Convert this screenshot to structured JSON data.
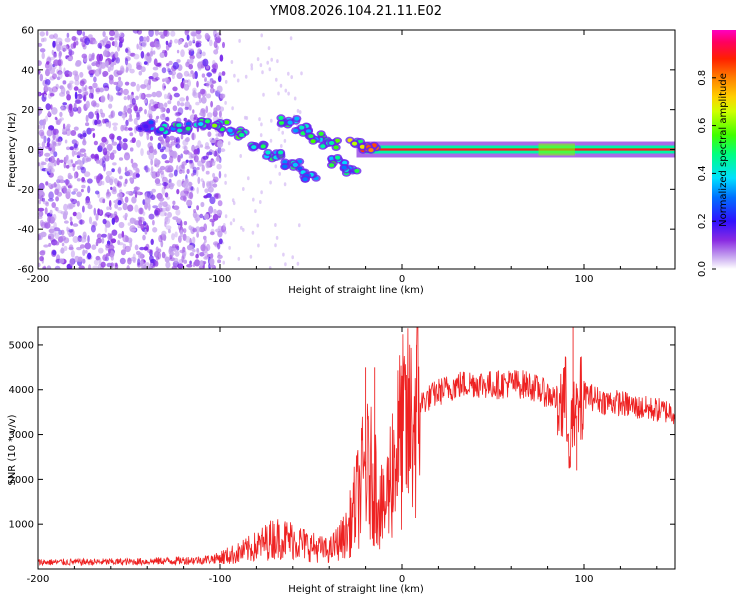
{
  "title": "YM08.2026.104.21.11.E02",
  "chart_data": [
    {
      "type": "heatmap",
      "name": "spectrogram",
      "xlabel": "Height of straight line (km)",
      "ylabel": "Frequency (Hz)",
      "xlim": [
        -200,
        150
      ],
      "ylim": [
        -60,
        60
      ],
      "xticks": [
        -200,
        -100,
        0,
        100
      ],
      "yticks": [
        -60,
        -40,
        -20,
        0,
        20,
        40,
        60
      ],
      "xtick_labels": [
        "-200",
        "-100",
        "0",
        "100"
      ],
      "ytick_labels": [
        "-60",
        "-40",
        "-20",
        "0",
        "20",
        "40",
        "60"
      ],
      "colorbar": {
        "label": "Normalized spectral amplitude",
        "range": [
          0,
          1
        ],
        "ticks": [
          0.0,
          0.2,
          0.4,
          0.6,
          0.8
        ],
        "tick_labels": [
          "0.0",
          "0.2",
          "0.4",
          "0.6",
          "0.8"
        ]
      },
      "features": {
        "noise_region_x": [
          -200,
          -98
        ],
        "sparse_region_x": [
          -98,
          -55
        ],
        "track_points": [
          {
            "x": -140,
            "f": 12,
            "a": 0.25
          },
          {
            "x": -130,
            "f": 10,
            "a": 0.35
          },
          {
            "x": -120,
            "f": 11,
            "a": 0.4
          },
          {
            "x": -110,
            "f": 13,
            "a": 0.45
          },
          {
            "x": -100,
            "f": 12,
            "a": 0.5
          },
          {
            "x": -90,
            "f": 8,
            "a": 0.45
          },
          {
            "x": -80,
            "f": 2,
            "a": 0.4
          },
          {
            "x": -70,
            "f": -3,
            "a": 0.45
          },
          {
            "x": -60,
            "f": -8,
            "a": 0.4
          },
          {
            "x": -50,
            "f": -13,
            "a": 0.35
          },
          {
            "x": -62,
            "f": 14,
            "a": 0.4
          },
          {
            "x": -55,
            "f": 10,
            "a": 0.4
          },
          {
            "x": -48,
            "f": 6,
            "a": 0.45
          },
          {
            "x": -40,
            "f": 3,
            "a": 0.5
          },
          {
            "x": -35,
            "f": -6,
            "a": 0.45
          },
          {
            "x": -28,
            "f": -10,
            "a": 0.4
          },
          {
            "x": -25,
            "f": 3,
            "a": 0.6
          },
          {
            "x": -18,
            "f": 1,
            "a": 0.75
          }
        ],
        "carrier_line": {
          "x_start": -20,
          "x_end": 150,
          "f": 0,
          "a": 0.9
        },
        "carrier_widening_x": [
          75,
          95
        ]
      }
    },
    {
      "type": "line",
      "name": "snr",
      "xlabel": "Height of straight line (km)",
      "ylabel": "SNR (10 * v/v)",
      "xlim": [
        -200,
        150
      ],
      "ylim": [
        0,
        5400
      ],
      "xticks": [
        -200,
        -100,
        0,
        100
      ],
      "yticks": [
        1000,
        2000,
        3000,
        4000,
        5000
      ],
      "xtick_labels": [
        "-200",
        "-100",
        "0",
        "100"
      ],
      "ytick_labels": [
        "1000",
        "2000",
        "3000",
        "4000",
        "5000"
      ],
      "color": "#ee2222",
      "series": [
        {
          "name": "SNR",
          "x": [
            -200,
            -150,
            -110,
            -100,
            -90,
            -80,
            -70,
            -60,
            -50,
            -40,
            -30,
            -25,
            -20,
            -15,
            -10,
            -5,
            0,
            5,
            10,
            20,
            30,
            40,
            50,
            60,
            70,
            80,
            85,
            90,
            92,
            95,
            100,
            110,
            120,
            130,
            140,
            150
          ],
          "y": [
            150,
            160,
            200,
            250,
            350,
            500,
            700,
            650,
            500,
            400,
            800,
            1500,
            2200,
            2000,
            1200,
            2400,
            3000,
            3200,
            3700,
            3950,
            4100,
            4150,
            4100,
            4150,
            4100,
            3900,
            3800,
            3700,
            3000,
            3300,
            3900,
            3750,
            3700,
            3600,
            3550,
            3500
          ]
        }
      ],
      "peaks": [
        {
          "x": -20,
          "y": 4500
        },
        {
          "x": -15,
          "y": 4500
        },
        {
          "x": 8,
          "y": 5000
        },
        {
          "x": 94,
          "y": 5400
        },
        {
          "x": 96,
          "y": 2200
        }
      ]
    }
  ]
}
